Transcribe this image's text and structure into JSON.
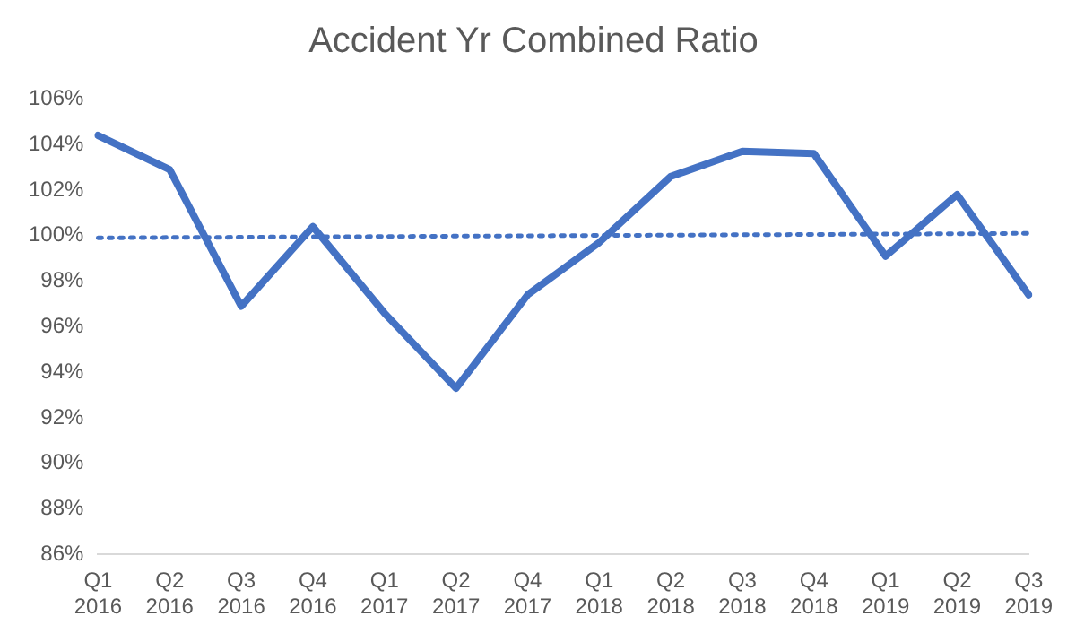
{
  "chart_data": {
    "type": "line",
    "title": "Accident Yr Combined Ratio",
    "categories": [
      "Q1 2016",
      "Q2 2016",
      "Q3 2016",
      "Q4 2016",
      "Q1 2017",
      "Q2 2017",
      "Q4 2017",
      "Q1 2018",
      "Q2 2018",
      "Q3 2018",
      "Q4 2018",
      "Q1 2019",
      "Q2 2019",
      "Q3 2019"
    ],
    "series": [
      {
        "color": "#4472c4",
        "line_style": "solid",
        "values": [
          104.4,
          102.9,
          96.9,
          100.4,
          96.6,
          93.3,
          97.4,
          99.7,
          102.6,
          103.7,
          103.6,
          99.1,
          101.8,
          97.4
        ]
      },
      {
        "color": "#4472c4",
        "line_style": "dotted",
        "values": [
          99.9,
          99.92,
          99.93,
          99.95,
          99.96,
          99.98,
          99.99,
          100.01,
          100.02,
          100.04,
          100.05,
          100.07,
          100.08,
          100.1
        ]
      }
    ],
    "ylim": [
      86,
      106
    ],
    "yticks": [
      {
        "value": 86,
        "label": "86%"
      },
      {
        "value": 88,
        "label": "88%"
      },
      {
        "value": 90,
        "label": "90%"
      },
      {
        "value": 92,
        "label": "92%"
      },
      {
        "value": 94,
        "label": "94%"
      },
      {
        "value": 96,
        "label": "96%"
      },
      {
        "value": 98,
        "label": "98%"
      },
      {
        "value": 100,
        "label": "100%"
      },
      {
        "value": 102,
        "label": "102%"
      },
      {
        "value": 104,
        "label": "104%"
      },
      {
        "value": 106,
        "label": "106%"
      }
    ],
    "grid": false,
    "legend": false,
    "marker": "none"
  }
}
